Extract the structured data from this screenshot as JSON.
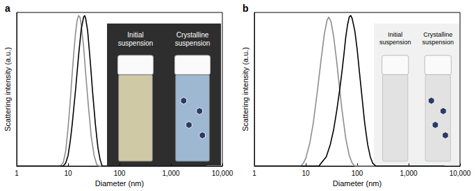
{
  "chart_data": [
    {
      "type": "line",
      "title": "a",
      "x_label": "Diameter (nm)",
      "y_label": "Scattering intensity (a.u.)",
      "xlim": [
        1,
        10000
      ],
      "xticks": [
        1,
        10,
        100,
        {
          "value": 1000,
          "label": "1,000"
        },
        {
          "value": 10000,
          "label": "10,000"
        }
      ],
      "ylim": [
        0,
        100
      ],
      "log": "x",
      "grid": false,
      "tick_labels": "x",
      "annotations": [
        "Initial suspension",
        "Crystalline suspension"
      ],
      "series": [
        {
          "color": "#8c8c8c",
          "x": [
            1,
            7,
            8,
            9,
            10,
            11,
            12,
            13,
            14,
            15,
            16,
            17,
            18,
            20,
            22,
            25,
            28,
            32,
            36,
            40,
            5000
          ],
          "values": [
            0,
            0,
            2,
            10,
            25,
            42,
            60,
            75,
            87,
            95,
            98,
            97,
            92,
            78,
            60,
            38,
            20,
            7,
            1,
            0,
            0
          ]
        },
        {
          "color": "#000000",
          "x": [
            1,
            8,
            9,
            10,
            11,
            12,
            14,
            16,
            18,
            20,
            21,
            22,
            24,
            27,
            30,
            34,
            38,
            42,
            46,
            5000
          ],
          "values": [
            0,
            0,
            2,
            7,
            16,
            27,
            50,
            72,
            89,
            97,
            98,
            96,
            88,
            68,
            48,
            27,
            12,
            4,
            0,
            0
          ]
        }
      ]
    },
    {
      "type": "line",
      "title": "b",
      "x_label": "Diameter (nm)",
      "y_label": "Scattering intensity (a.u.)",
      "xlim": [
        1,
        10000
      ],
      "xticks": [
        1,
        10,
        100,
        {
          "value": 1000,
          "label": "1,000"
        },
        {
          "value": 10000,
          "label": "10,000"
        }
      ],
      "ylim": [
        0,
        100
      ],
      "log": "x",
      "grid": false,
      "tick_labels": "x",
      "annotations": [
        "Initial suspension",
        "Crystalline suspension"
      ],
      "series": [
        {
          "color": "#8c8c8c",
          "x": [
            1,
            8,
            9,
            10,
            12,
            14,
            17,
            20,
            23,
            26,
            28,
            31,
            35,
            40,
            45,
            50,
            60,
            70,
            80,
            90,
            5000
          ],
          "values": [
            0,
            0,
            2,
            5,
            15,
            28,
            50,
            70,
            86,
            95,
            97,
            94,
            84,
            68,
            52,
            38,
            18,
            7,
            2,
            0,
            0
          ]
        },
        {
          "color": "#000000",
          "x": [
            1,
            18,
            20,
            25,
            30,
            35,
            40,
            45,
            50,
            55,
            60,
            65,
            70,
            75,
            80,
            90,
            100,
            110,
            125,
            140,
            160,
            180,
            200,
            230,
            5000
          ],
          "values": [
            0,
            0,
            2,
            6,
            14,
            24,
            36,
            48,
            60,
            72,
            84,
            92,
            97,
            98,
            96,
            88,
            76,
            62,
            44,
            28,
            14,
            6,
            2,
            0,
            0
          ]
        }
      ]
    }
  ]
}
